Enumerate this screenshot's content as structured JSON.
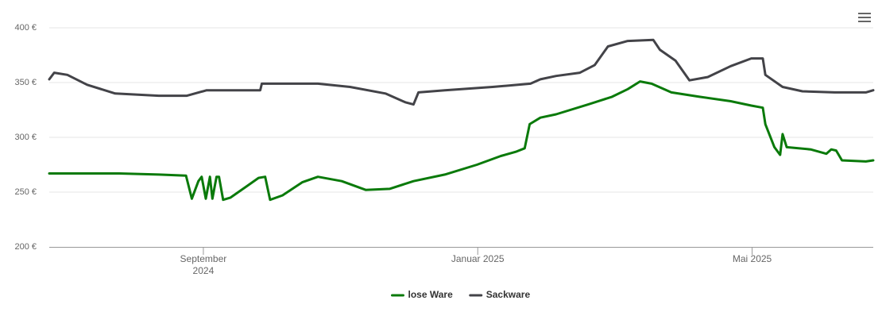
{
  "chart_data": {
    "type": "line",
    "xlim": [
      2024.48,
      2025.48
    ],
    "xticks": [
      {
        "value": 2024.667,
        "label": "September 2024"
      },
      {
        "value": 2025.0,
        "label": "Januar 2025"
      },
      {
        "value": 2025.333,
        "label": "Mai 2025"
      }
    ],
    "ylim": [
      200,
      400
    ],
    "yticks": [
      {
        "value": 200,
        "label": "200 €"
      },
      {
        "value": 250,
        "label": "250 €"
      },
      {
        "value": 300,
        "label": "300 €"
      },
      {
        "value": 350,
        "label": "350 €"
      },
      {
        "value": 400,
        "label": "400 €"
      }
    ],
    "grid": true,
    "legend": "bottom",
    "series": [
      {
        "name": "lose Ware",
        "color": "#0a7a0a",
        "x": [
          2024.48,
          2024.565,
          2024.613,
          2024.646,
          2024.653,
          2024.661,
          2024.665,
          2024.67,
          2024.675,
          2024.678,
          2024.683,
          2024.686,
          2024.691,
          2024.7,
          2024.719,
          2024.734,
          2024.742,
          2024.748,
          2024.763,
          2024.787,
          2024.806,
          2024.835,
          2024.864,
          2024.893,
          2024.922,
          2024.96,
          2024.999,
          2025.028,
          2025.047,
          2025.057,
          2025.063,
          2025.076,
          2025.095,
          2025.134,
          2025.163,
          2025.182,
          2025.197,
          2025.211,
          2025.235,
          2025.269,
          2025.307,
          2025.332,
          2025.346,
          2025.349,
          2025.36,
          2025.367,
          2025.37,
          2025.375,
          2025.404,
          2025.423,
          2025.429,
          2025.435,
          2025.442,
          2025.471,
          2025.48
        ],
        "values": [
          267,
          267,
          266,
          265,
          244,
          260,
          264,
          244,
          264,
          244,
          264,
          264,
          243,
          245,
          255,
          263,
          264,
          243,
          247,
          259,
          264,
          260,
          252,
          253,
          260,
          266,
          275,
          283,
          287,
          290,
          312,
          318,
          321,
          330,
          337,
          344,
          351,
          349,
          341,
          337,
          333,
          329,
          327,
          312,
          291,
          284,
          303,
          291,
          289,
          285,
          289,
          288,
          279,
          278,
          279
        ]
      },
      {
        "name": "Sackware",
        "color": "#434348",
        "x": [
          2024.48,
          2024.486,
          2024.502,
          2024.526,
          2024.56,
          2024.613,
          2024.647,
          2024.671,
          2024.7,
          2024.736,
          2024.738,
          2024.806,
          2024.845,
          2024.888,
          2024.912,
          2024.922,
          2024.928,
          2024.96,
          2025.018,
          2025.064,
          2025.076,
          2025.095,
          2025.124,
          2025.142,
          2025.158,
          2025.182,
          2025.213,
          2025.221,
          2025.24,
          2025.257,
          2025.279,
          2025.307,
          2025.332,
          2025.346,
          2025.349,
          2025.37,
          2025.394,
          2025.433,
          2025.471,
          2025.48
        ],
        "values": [
          353,
          359,
          357,
          348,
          340,
          338,
          338,
          343,
          343,
          343,
          349,
          349,
          346,
          340,
          332,
          330,
          341,
          343,
          346,
          349,
          353,
          356,
          359,
          366,
          383,
          388,
          389,
          380,
          370,
          352,
          355,
          365,
          372,
          372,
          357,
          346,
          342,
          341,
          341,
          343
        ]
      }
    ]
  }
}
